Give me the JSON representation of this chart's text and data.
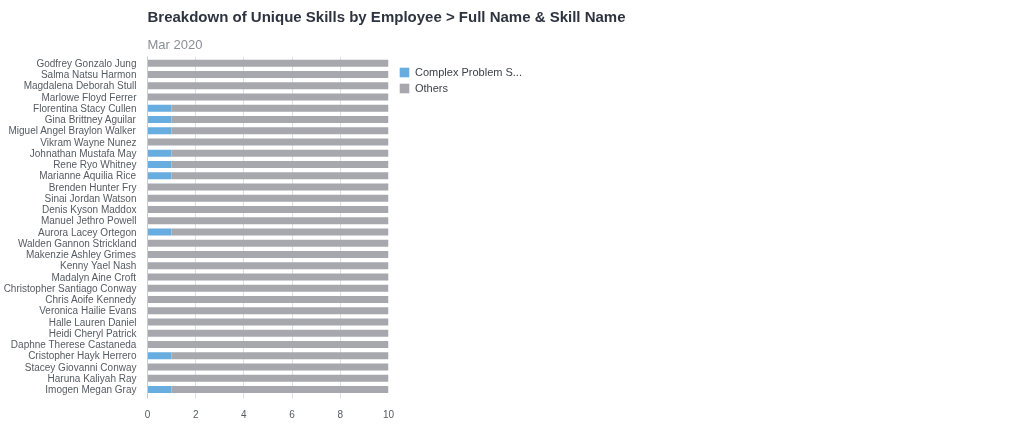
{
  "chart_data": {
    "type": "bar",
    "orientation": "horizontal",
    "stacked": true,
    "title": "Breakdown of Unique Skills by Employee > Full Name & Skill Name",
    "subtitle": "Mar 2020",
    "categories": [
      "Godfrey Gonzalo Jung",
      "Salma Natsu Harmon",
      "Magdalena Deborah Stull",
      "Marlowe Floyd Ferrer",
      "Florentina Stacy Cullen",
      "Gina Brittney Aguilar",
      "Miguel Angel Braylon Walker",
      "Vikram Wayne Nunez",
      "Johnathan Mustafa May",
      "Rene Ryo Whitney",
      "Marianne Aquilia Rice",
      "Brenden Hunter Fry",
      "Sinai Jordan Watson",
      "Denis Kyson Maddox",
      "Manuel Jethro Powell",
      "Aurora Lacey Ortegon",
      "Walden Gannon Strickland",
      "Makenzie Ashley Grimes",
      "Kenny Yael Nash",
      "Madalyn Aine Croft",
      "Christopher Santiago Conway",
      "Chris Aoife Kennedy",
      "Veronica Hailie Evans",
      "Halle Lauren Daniel",
      "Heidi Cheryl Patrick",
      "Daphne Therese Castaneda",
      "Cristopher Hayk Herrero",
      "Stacey Giovanni Conway",
      "Haruna Kaliyah Ray",
      "Imogen Megan Gray"
    ],
    "series": [
      {
        "name": "Complex Problem S...",
        "color": "#68ade0",
        "values": [
          0,
          0,
          0,
          0,
          1,
          1,
          1,
          0,
          1,
          1,
          1,
          0,
          0,
          0,
          0,
          1,
          0,
          0,
          0,
          0,
          0,
          0,
          0,
          0,
          0,
          0,
          1,
          0,
          0,
          1
        ]
      },
      {
        "name": "Others",
        "color": "#a6a8ad",
        "values": [
          10,
          10,
          10,
          10,
          9,
          9,
          9,
          10,
          9,
          9,
          9,
          10,
          10,
          10,
          10,
          9,
          10,
          10,
          10,
          10,
          10,
          10,
          10,
          10,
          10,
          10,
          9,
          10,
          10,
          9
        ]
      }
    ],
    "xlim": [
      0,
      10
    ],
    "xticks": [
      0,
      2,
      4,
      6,
      8,
      10
    ],
    "grid": "x",
    "legend": "top right"
  }
}
